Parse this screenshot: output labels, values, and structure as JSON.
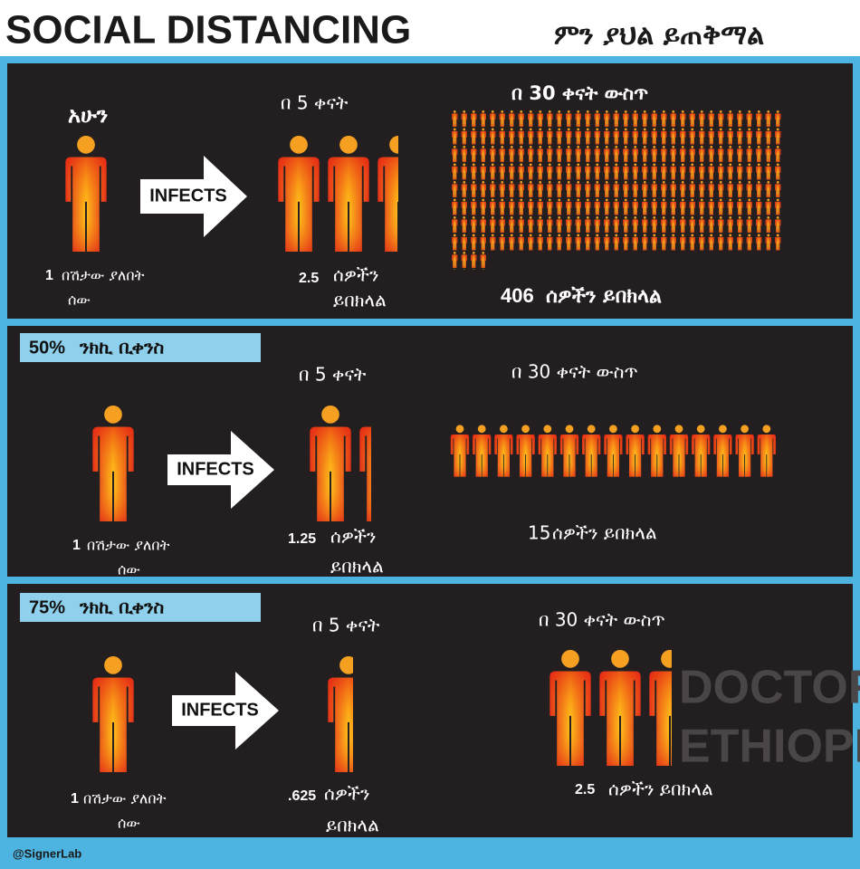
{
  "header": {
    "title": "SOCIAL DISTANCING",
    "subtitle": "ምን ያህል ይጠቅማል"
  },
  "panels": [
    {
      "now": "አሁን",
      "source": {
        "count": "1",
        "line1": "በሽታው ያለበት",
        "line2": "ሰው"
      },
      "arrow": "INFECTS",
      "day5": {
        "heading": "በ 5 ቀናት",
        "count": "2.5",
        "line1": "ሰዎችን",
        "line2": "ይበክላል"
      },
      "day30": {
        "heading": "በ 30 ቀናት ውስጥ",
        "count": "406",
        "text": "ሰዎችን ይበክላል"
      }
    },
    {
      "label": {
        "percent": "50%",
        "text": "ንክኪ ቢቀንስ"
      },
      "source": {
        "count": "1",
        "line1": "በሽታው ያለበት",
        "line2": "ሰው"
      },
      "arrow": "INFECTS",
      "day5": {
        "heading": "በ 5 ቀናት",
        "count": "1.25",
        "line1": "ሰዎችን",
        "line2": "ይበክላል"
      },
      "day30": {
        "heading": "በ 30 ቀናት ውስጥ",
        "count": "15",
        "text": "ሰዎችን ይበክላል"
      }
    },
    {
      "label": {
        "percent": "75%",
        "text": "ንክኪ ቢቀንስ"
      },
      "source": {
        "count": "1",
        "line1": "በሽታው ያለበት",
        "line2": "ሰው"
      },
      "arrow": "INFECTS",
      "day5": {
        "heading": "በ 5 ቀናት",
        "count": ".625",
        "line1": "ሰዎችን",
        "line2": "ይበክላል"
      },
      "day30": {
        "heading": "በ 30 ቀናት ውስጥ",
        "count": "2.5",
        "text": "ሰዎችን ይበክላል"
      }
    }
  ],
  "watermark": {
    "line1": "DOCTORS",
    "line2": "ETHIOPIA"
  },
  "footer": {
    "credit": "@SignerLab"
  }
}
